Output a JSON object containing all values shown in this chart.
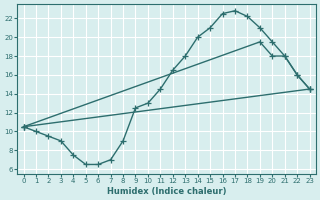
{
  "xlabel": "Humidex (Indice chaleur)",
  "bg_color": "#d8eeee",
  "grid_color": "#ffffff",
  "line_color": "#2d6e6e",
  "xlim": [
    -0.5,
    23.5
  ],
  "ylim": [
    5.5,
    23.5
  ],
  "xticks": [
    0,
    1,
    2,
    3,
    4,
    5,
    6,
    7,
    8,
    9,
    10,
    11,
    12,
    13,
    14,
    15,
    16,
    17,
    18,
    19,
    20,
    21,
    22,
    23
  ],
  "yticks": [
    6,
    8,
    10,
    12,
    14,
    16,
    18,
    20,
    22
  ],
  "line1_x": [
    0,
    1,
    2,
    3,
    4,
    5,
    6,
    7,
    8,
    9,
    10,
    11,
    12,
    13,
    14,
    15,
    16,
    17,
    18,
    19,
    20,
    21,
    22,
    23
  ],
  "line1_y": [
    10.5,
    10.0,
    9.5,
    9.0,
    7.5,
    6.5,
    6.5,
    7.0,
    9.0,
    12.5,
    13.0,
    14.5,
    16.5,
    18.0,
    20.0,
    21.0,
    22.5,
    22.8,
    22.2,
    21.0,
    19.5,
    18.0,
    16.0,
    14.5
  ],
  "line2_x": [
    0,
    19,
    20,
    21,
    22,
    23
  ],
  "line2_y": [
    10.5,
    19.5,
    18.0,
    18.0,
    16.0,
    14.5
  ],
  "line3_x": [
    0,
    23
  ],
  "line3_y": [
    10.5,
    14.5
  ]
}
